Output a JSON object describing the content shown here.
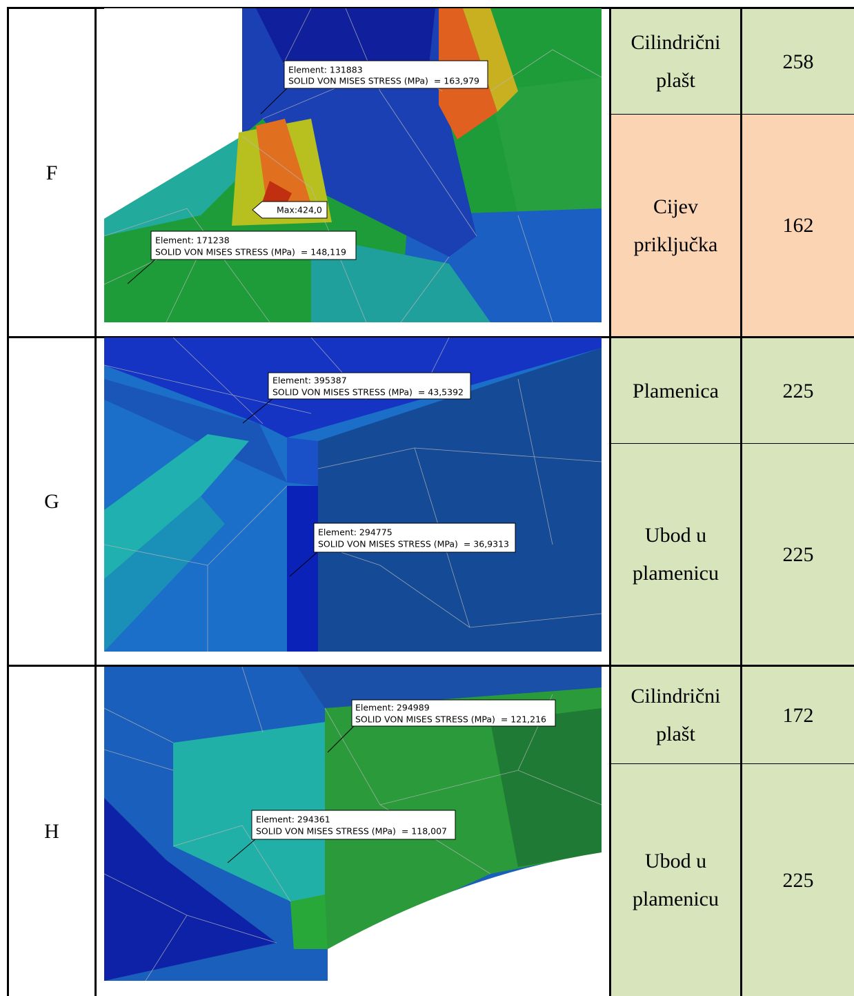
{
  "rows": [
    {
      "label": "F",
      "image": {
        "annotations": [
          {
            "element": "Element: 131883",
            "stress": "SOLID VON MISES STRESS (MPa)  = 163,979"
          },
          {
            "element": "Element: 171238",
            "stress": "SOLID VON MISES STRESS (MPa)  = 148,119"
          }
        ],
        "max_label": "Max:424,0"
      },
      "parts": [
        {
          "name": "Cilindrični plašt",
          "value": 258
        },
        {
          "name": "Cijev priključka",
          "value": 162
        }
      ]
    },
    {
      "label": "G",
      "image": {
        "annotations": [
          {
            "element": "Element: 395387",
            "stress": "SOLID VON MISES STRESS (MPa)  = 43,5392"
          },
          {
            "element": "Element: 294775",
            "stress": "SOLID VON MISES STRESS (MPa)  = 36,9313"
          }
        ]
      },
      "parts": [
        {
          "name": "Plamenica",
          "value": 225
        },
        {
          "name": "Ubod u plamenicu",
          "value": 225
        }
      ]
    },
    {
      "label": "H",
      "image": {
        "annotations": [
          {
            "element": "Element: 294989",
            "stress": "SOLID VON MISES STRESS (MPa)  = 121,216"
          },
          {
            "element": "Element: 294361",
            "stress": "SOLID VON MISES STRESS (MPa)  = 118,007"
          }
        ]
      },
      "parts": [
        {
          "name": "Cilindrični plašt",
          "value": 172
        },
        {
          "name": "Ubod u plamenicu",
          "value": 225
        }
      ]
    }
  ]
}
